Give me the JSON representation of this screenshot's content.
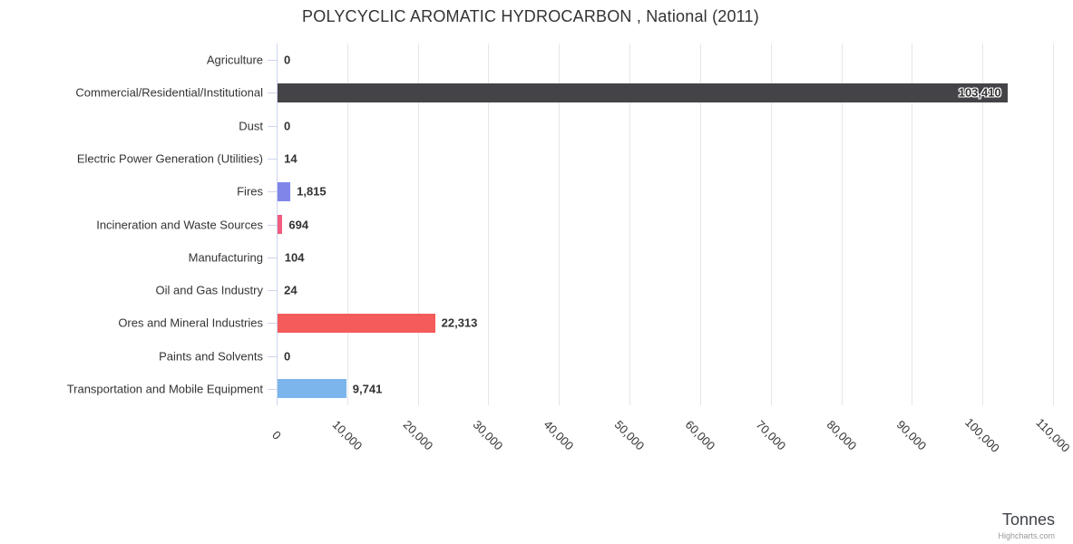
{
  "chart_data": {
    "type": "bar",
    "orientation": "horizontal",
    "title": "POLYCYCLIC AROMATIC HYDROCARBON , National (2011)",
    "categories": [
      "Agriculture",
      "Commercial/Residential/Institutional",
      "Dust",
      "Electric Power Generation (Utilities)",
      "Fires",
      "Incineration and Waste Sources",
      "Manufacturing",
      "Oil and Gas Industry",
      "Ores and Mineral Industries",
      "Paints and Solvents",
      "Transportation and Mobile Equipment"
    ],
    "values": [
      0,
      103410,
      0,
      14,
      1815,
      694,
      104,
      24,
      22313,
      0,
      9741
    ],
    "value_labels": [
      "0",
      "103,410",
      "0",
      "14",
      "1,815",
      "694",
      "104",
      "24",
      "22,313",
      "0",
      "9,741"
    ],
    "bar_colors": [
      "#7cb5ec",
      "#434348",
      "#90ed7d",
      "#f7a35c",
      "#8085e9",
      "#f15c80",
      "#e4d354",
      "#2b908f",
      "#f45b5b",
      "#91e8e1",
      "#7cb5ec"
    ],
    "xlabel": "Tonnes",
    "ylabel": "",
    "xlim": [
      0,
      110000
    ],
    "x_tick_interval": 10000,
    "x_tick_labels": [
      "0",
      "10,000",
      "20,000",
      "30,000",
      "40,000",
      "50,000",
      "60,000",
      "70,000",
      "80,000",
      "90,000",
      "100,000",
      "110,000"
    ],
    "grid": true,
    "legend": false,
    "credits": "Highcharts.com",
    "colors": {
      "background": "#ffffff",
      "title": "#333333",
      "category_label": "#333333",
      "data_label": "#333333",
      "axis_line": "#ccd6eb",
      "gridline": "#e6e6e6",
      "axis_title": "#3e4247",
      "credits": "#999999"
    }
  }
}
